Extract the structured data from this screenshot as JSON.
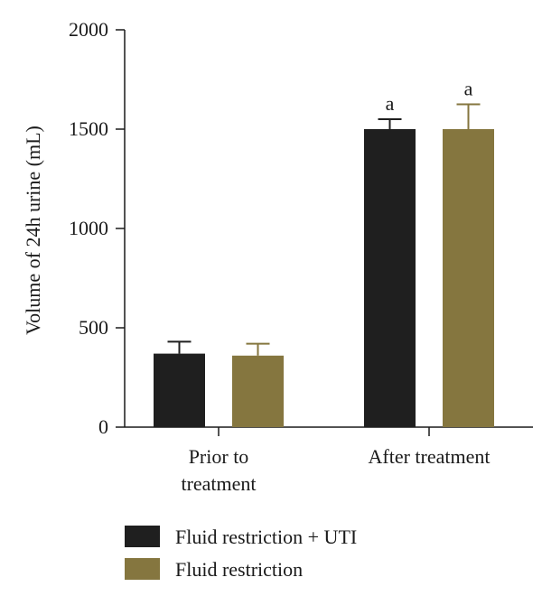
{
  "chart_data": {
    "type": "bar",
    "xlabel": "",
    "ylabel": "Volume of 24h urine (mL)",
    "ylim": [
      0,
      2000
    ],
    "yticks": [
      "0",
      "500",
      "1000",
      "1500",
      "2000"
    ],
    "grid": false,
    "legend_position": "bottom-left",
    "categories": [
      [
        "Prior to",
        "treatment"
      ],
      [
        "After treatment"
      ]
    ],
    "series": [
      {
        "name": "Fluid restriction + UTI",
        "color": "#1f1f1f",
        "values": [
          370,
          1500
        ],
        "errors": [
          60,
          50
        ],
        "annotations": [
          "",
          "a"
        ]
      },
      {
        "name": "Fluid restriction",
        "color": "#85763f",
        "values": [
          360,
          1500
        ],
        "errors": [
          60,
          125
        ],
        "annotations": [
          "",
          "a"
        ]
      }
    ]
  }
}
